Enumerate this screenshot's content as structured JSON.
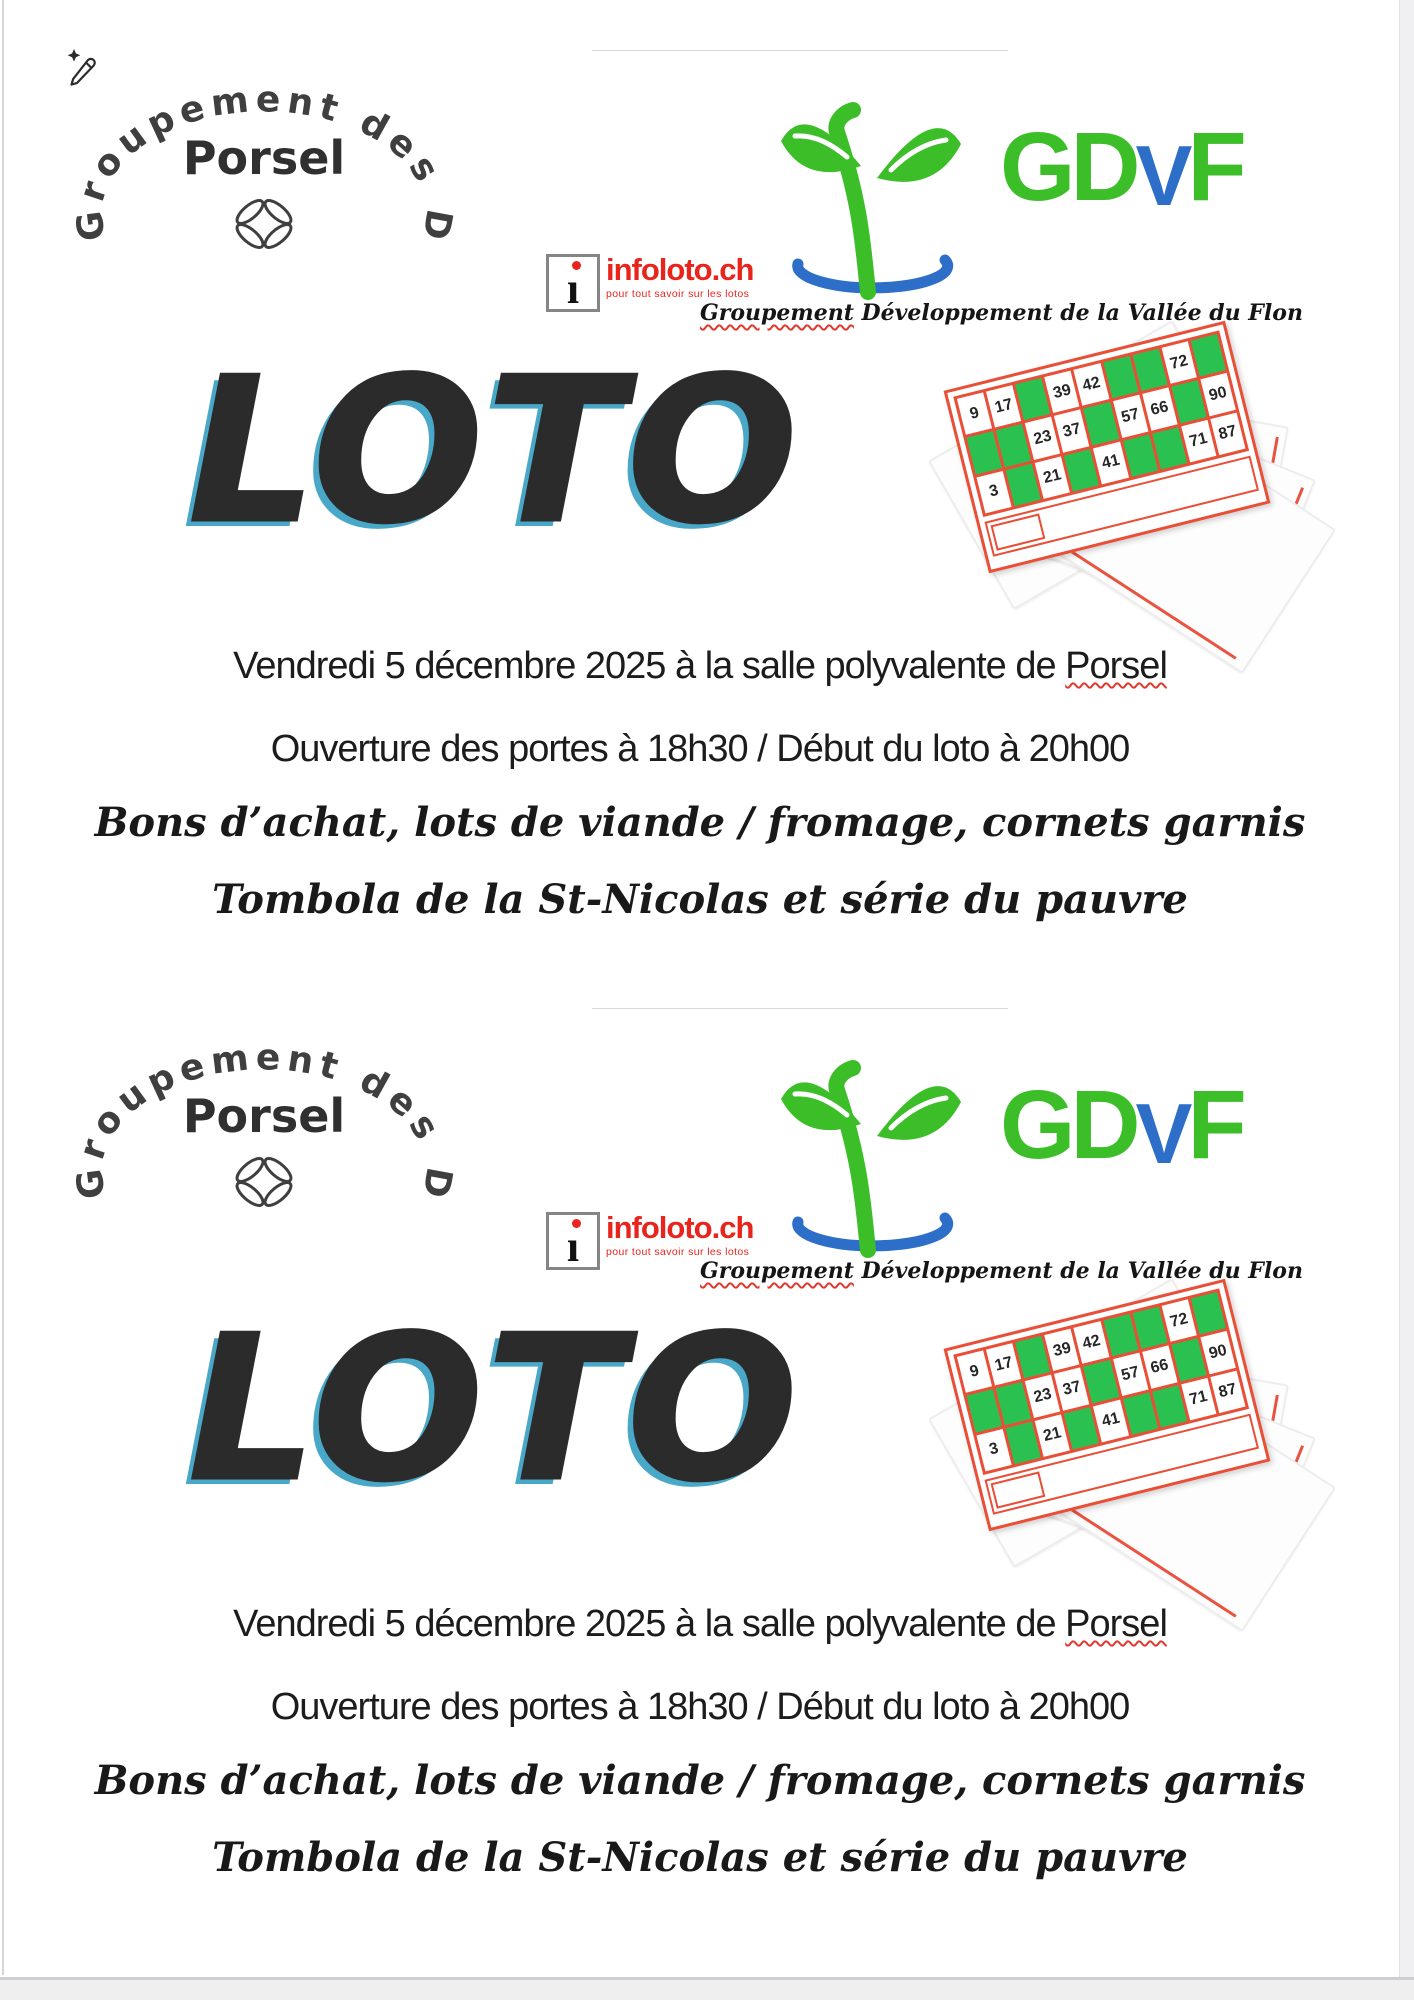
{
  "flyer": {
    "dames_logo": {
      "arc_text": "Groupement des Dames",
      "center_text": "Porsel"
    },
    "gdvf_logo": {
      "gd": "GD",
      "v": "V",
      "f": "F",
      "green": "#3cbe28",
      "blue": "#2d6ec8",
      "caption_flagged_word": "Groupement",
      "caption_rest": " Développement de la Vallée du Flon"
    },
    "infoloto_logo": {
      "i_glyph": "ı",
      "brand": "infoloto.ch",
      "tagline": "pour tout savoir sur les lotos",
      "red": "#e8241d"
    },
    "title": "LOTO",
    "title_text_color": "#2b2b2b",
    "title_shadow_color": "#49a8c8",
    "date_line_prefix": "Vendredi 5 décembre 2025 à la salle polyvalente de ",
    "date_line_flagged": "Porsel",
    "hours_line": "Ouverture des portes à 18h30 / Début du loto à 20h00",
    "prizes_line": "Bons d’achat, lots de viande / fromage, cornets garnis",
    "tombola_line": "Tombola de la St-Nicolas et série du pauvre",
    "loto_card": {
      "grid_red": "#e94e37",
      "cell_green": "#2ac150",
      "rows": [
        [
          9,
          17,
          null,
          39,
          42,
          null,
          null,
          72,
          null
        ],
        [
          null,
          null,
          23,
          37,
          null,
          57,
          66,
          null,
          90
        ],
        [
          3,
          null,
          21,
          null,
          41,
          null,
          null,
          71,
          87
        ]
      ]
    }
  }
}
